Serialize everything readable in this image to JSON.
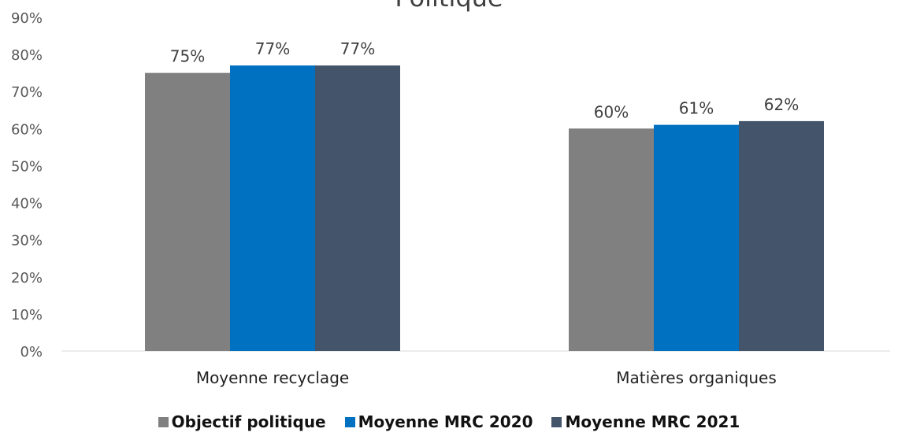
{
  "chart_data": {
    "type": "bar",
    "title": "Politique",
    "categories": [
      "Moyenne recyclage",
      "Matières organiques"
    ],
    "series": [
      {
        "name": "Objectif politique",
        "values": [
          75,
          60
        ],
        "labels": [
          "75%",
          "60%"
        ],
        "color": "#808080"
      },
      {
        "name": "Moyenne MRC 2020",
        "values": [
          77,
          61
        ],
        "labels": [
          "77%",
          "61%"
        ],
        "color": "#0070C0"
      },
      {
        "name": "Moyenne MRC 2021",
        "values": [
          77,
          62
        ],
        "labels": [
          "77%",
          "62%"
        ],
        "color": "#44546A"
      }
    ],
    "ylim": [
      0,
      90
    ],
    "yticks": [
      "0%",
      "10%",
      "20%",
      "30%",
      "40%",
      "50%",
      "60%",
      "70%",
      "80%",
      "90%"
    ],
    "grid": false,
    "legend_position": "bottom"
  }
}
